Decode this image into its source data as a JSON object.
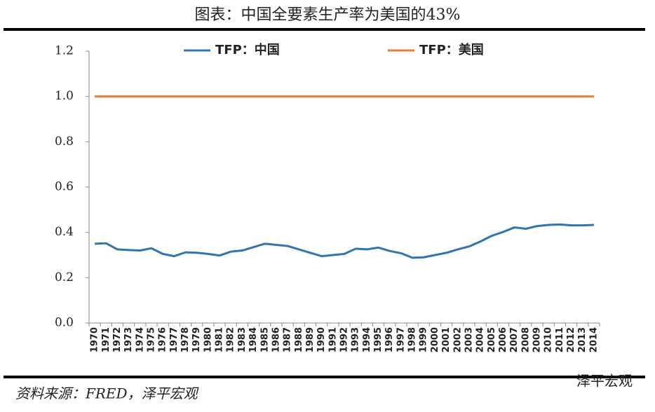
{
  "chart_data": {
    "type": "line",
    "title": "图表：中国全要素生产率为美国的43%",
    "source": "资料来源：FRED，泽平宏观",
    "watermark": "泽平宏观",
    "categories": [
      "1970",
      "1971",
      "1972",
      "1973",
      "1974",
      "1975",
      "1976",
      "1977",
      "1978",
      "1979",
      "1980",
      "1981",
      "1982",
      "1983",
      "1984",
      "1985",
      "1986",
      "1987",
      "1988",
      "1989",
      "1990",
      "1991",
      "1992",
      "1993",
      "1994",
      "1995",
      "1996",
      "1997",
      "1998",
      "1999",
      "2000",
      "2001",
      "2002",
      "2003",
      "2004",
      "2005",
      "2006",
      "2007",
      "2008",
      "2009",
      "2010",
      "2011",
      "2012",
      "2013",
      "2014"
    ],
    "series": [
      {
        "name": "TFP：中国",
        "color": "#2e75b6",
        "values": [
          0.35,
          0.352,
          0.325,
          0.322,
          0.32,
          0.33,
          0.305,
          0.295,
          0.312,
          0.31,
          0.305,
          0.298,
          0.315,
          0.32,
          0.335,
          0.35,
          0.345,
          0.34,
          0.325,
          0.31,
          0.295,
          0.3,
          0.305,
          0.328,
          0.325,
          0.333,
          0.318,
          0.308,
          0.288,
          0.29,
          0.3,
          0.31,
          0.325,
          0.338,
          0.36,
          0.385,
          0.402,
          0.422,
          0.416,
          0.428,
          0.433,
          0.435,
          0.431,
          0.431,
          0.433
        ]
      },
      {
        "name": "TFP：美国",
        "color": "#ed7d31",
        "values": [
          1,
          1,
          1,
          1,
          1,
          1,
          1,
          1,
          1,
          1,
          1,
          1,
          1,
          1,
          1,
          1,
          1,
          1,
          1,
          1,
          1,
          1,
          1,
          1,
          1,
          1,
          1,
          1,
          1,
          1,
          1,
          1,
          1,
          1,
          1,
          1,
          1,
          1,
          1,
          1,
          1,
          1,
          1,
          1,
          1
        ]
      }
    ],
    "ylim": [
      0,
      1.2
    ],
    "yticks": [
      {
        "value": 0,
        "label": "0.0"
      },
      0.2,
      0.4,
      0.6,
      0.8,
      {
        "value": 1,
        "label": "1.0"
      },
      1.2
    ]
  }
}
